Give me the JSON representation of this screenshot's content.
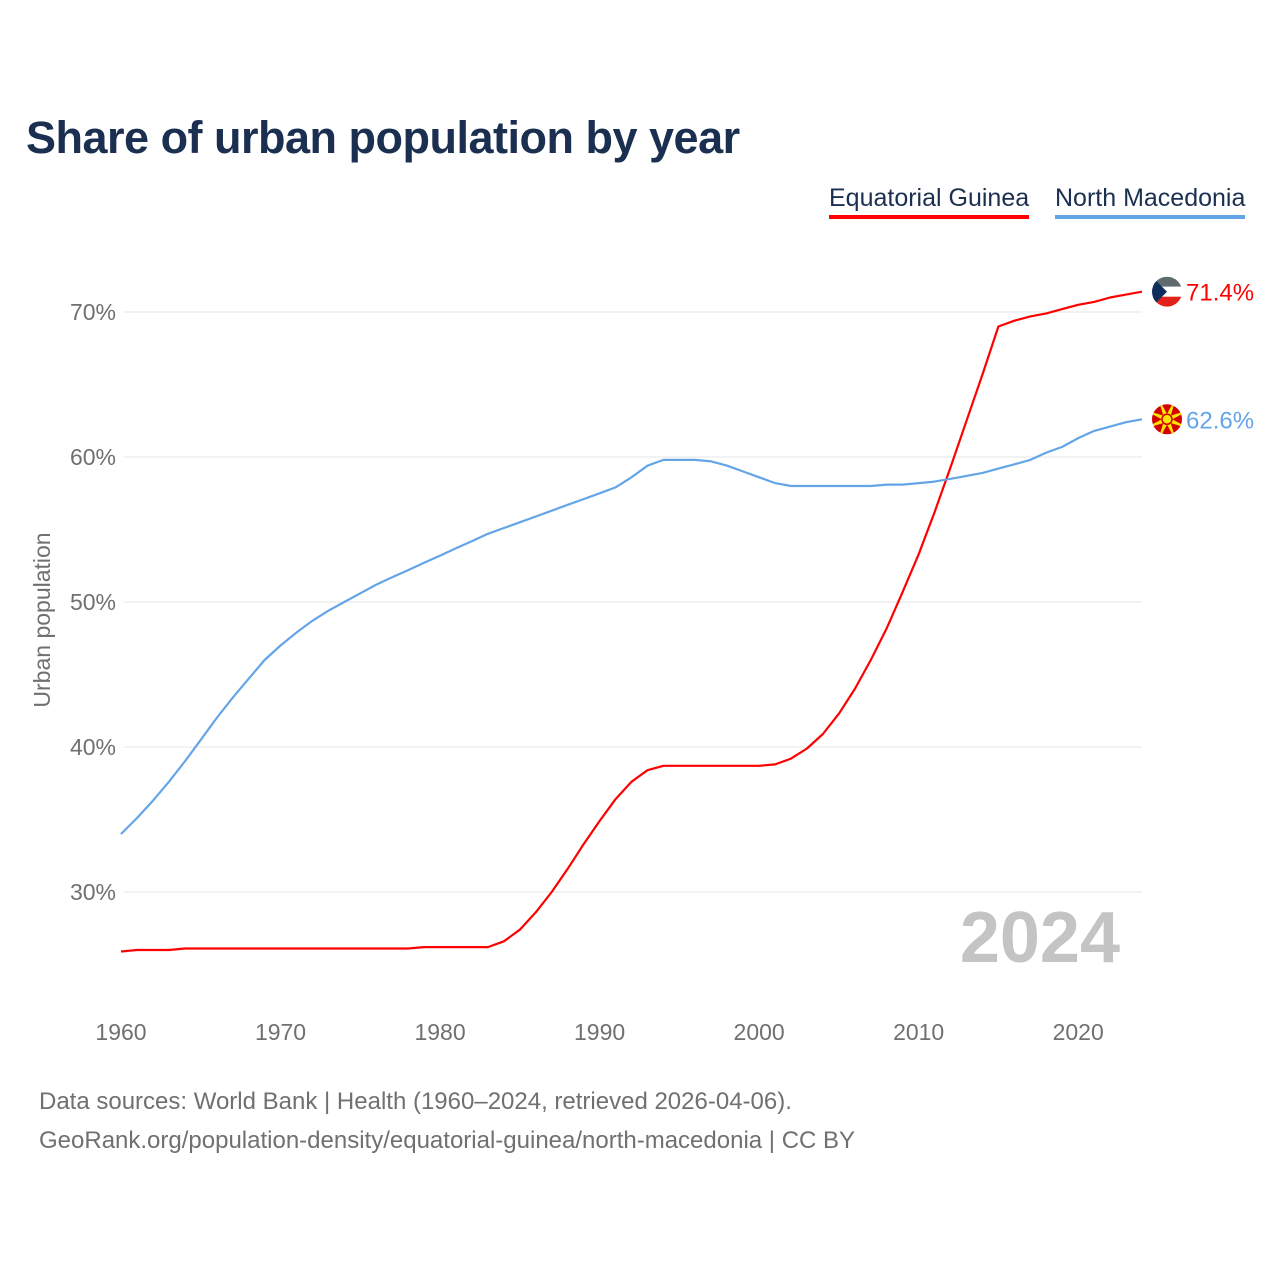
{
  "title": "Share of urban population by year",
  "legend": [
    {
      "label": "Equatorial Guinea",
      "color": "#ff0000"
    },
    {
      "label": "North Macedonia",
      "color": "#64a5e8"
    }
  ],
  "year_watermark": "2024",
  "footer": {
    "line1": "Data sources: World Bank | Health (1960–2024, retrieved 2026-04-06).",
    "line2": "GeoRank.org/population-density/equatorial-guinea/north-macedonia | CC BY"
  },
  "chart_data": {
    "type": "line",
    "title": "Share of urban population by year",
    "xlabel": "",
    "ylabel": "Urban population",
    "xlim": [
      1960,
      2024
    ],
    "ylim": [
      24,
      74
    ],
    "x_ticks": [
      1960,
      1970,
      1980,
      1990,
      2000,
      2010,
      2020
    ],
    "x_tick_labels": [
      "1960",
      "1970",
      "1980",
      "1990",
      "2000",
      "2010",
      "2020"
    ],
    "y_ticks": [
      30,
      40,
      50,
      60,
      70
    ],
    "y_tick_labels": [
      "30%",
      "40%",
      "50%",
      "60%",
      "70%"
    ],
    "grid": true,
    "legend_position": "top-right",
    "x": [
      1960,
      1961,
      1962,
      1963,
      1964,
      1965,
      1966,
      1967,
      1968,
      1969,
      1970,
      1971,
      1972,
      1973,
      1974,
      1975,
      1976,
      1977,
      1978,
      1979,
      1980,
      1981,
      1982,
      1983,
      1984,
      1985,
      1986,
      1987,
      1988,
      1989,
      1990,
      1991,
      1992,
      1993,
      1994,
      1995,
      1996,
      1997,
      1998,
      1999,
      2000,
      2001,
      2002,
      2003,
      2004,
      2005,
      2006,
      2007,
      2008,
      2009,
      2010,
      2011,
      2012,
      2013,
      2014,
      2015,
      2016,
      2017,
      2018,
      2019,
      2020,
      2021,
      2022,
      2023,
      2024
    ],
    "series": [
      {
        "name": "Equatorial Guinea",
        "color": "#ff0000",
        "end_label": "71.4%",
        "values": [
          25.9,
          26.0,
          26.0,
          26.0,
          26.1,
          26.1,
          26.1,
          26.1,
          26.1,
          26.1,
          26.1,
          26.1,
          26.1,
          26.1,
          26.1,
          26.1,
          26.1,
          26.1,
          26.1,
          26.2,
          26.2,
          26.2,
          26.2,
          26.2,
          26.6,
          27.4,
          28.6,
          30.0,
          31.6,
          33.3,
          34.9,
          36.4,
          37.6,
          38.4,
          38.7,
          38.7,
          38.7,
          38.7,
          38.7,
          38.7,
          38.7,
          38.8,
          39.2,
          39.9,
          40.9,
          42.3,
          44.0,
          46.0,
          48.2,
          50.7,
          53.3,
          56.2,
          59.3,
          62.5,
          65.7,
          69.0,
          69.4,
          69.7,
          69.9,
          70.2,
          70.5,
          70.7,
          71.0,
          71.2,
          71.4
        ]
      },
      {
        "name": "North Macedonia",
        "color": "#64a5e8",
        "end_label": "62.6%",
        "values": [
          34.0,
          35.1,
          36.3,
          37.6,
          39.0,
          40.5,
          42.0,
          43.4,
          44.7,
          46.0,
          47.0,
          47.9,
          48.7,
          49.4,
          50.0,
          50.6,
          51.2,
          51.7,
          52.2,
          52.7,
          53.2,
          53.7,
          54.2,
          54.7,
          55.1,
          55.5,
          55.9,
          56.3,
          56.7,
          57.1,
          57.5,
          57.9,
          58.6,
          59.4,
          59.8,
          59.8,
          59.8,
          59.7,
          59.4,
          59.0,
          58.6,
          58.2,
          58.0,
          58.0,
          58.0,
          58.0,
          58.0,
          58.0,
          58.1,
          58.1,
          58.2,
          58.3,
          58.5,
          58.7,
          58.9,
          59.2,
          59.5,
          59.8,
          60.3,
          60.7,
          61.3,
          61.8,
          62.1,
          62.4,
          62.6
        ]
      }
    ]
  }
}
